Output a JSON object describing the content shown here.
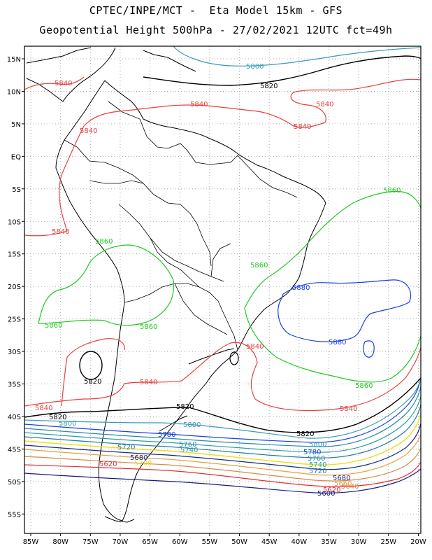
{
  "header": {
    "line1": "CPTEC/INPE/MCT -  Eta Model 15km - GFS",
    "line2": "Geopotential Height 500hPa - 27/02/2021 12UTC fct=49h"
  },
  "axes": {
    "lat_labels": [
      "15N",
      "10N",
      "5N",
      "EQ",
      "5S",
      "10S",
      "15S",
      "20S",
      "25S",
      "30S",
      "35S",
      "40S",
      "45S",
      "50S",
      "55S"
    ],
    "lon_labels": [
      "85W",
      "80W",
      "75W",
      "70W",
      "65W",
      "60W",
      "55W",
      "50W",
      "45W",
      "40W",
      "35W",
      "30W",
      "25W",
      "20W"
    ]
  },
  "contours": {
    "c5600": {
      "label": "5600",
      "color": "#1a1a80"
    },
    "c5620": {
      "label": "5620",
      "color": "#e03030"
    },
    "c5640": {
      "label": "5640",
      "color": "#d4884a"
    },
    "c5660": {
      "label": "5660",
      "color": "#e8a040"
    },
    "c5680": {
      "label": "5680",
      "color": "#1a2a80"
    },
    "c5700": {
      "label": "5700",
      "color": "#e8e020"
    },
    "c5720": {
      "label": "5720",
      "color": "#2a7aa0"
    },
    "c5740": {
      "label": "5740",
      "color": "#2aa0a0"
    },
    "c5760": {
      "label": "5760",
      "color": "#2a8aa8"
    },
    "c5780": {
      "label": "5780",
      "color": "#1a40e0"
    },
    "c5800": {
      "label": "5800",
      "color": "#3a9ab8"
    },
    "c5820": {
      "label": "5820",
      "color": "#000000"
    },
    "c5840": {
      "label": "5840",
      "color": "#e84040"
    },
    "c5860": {
      "label": "5860",
      "color": "#22c822"
    },
    "c5880": {
      "label": "5880",
      "color": "#1a40e0"
    }
  }
}
